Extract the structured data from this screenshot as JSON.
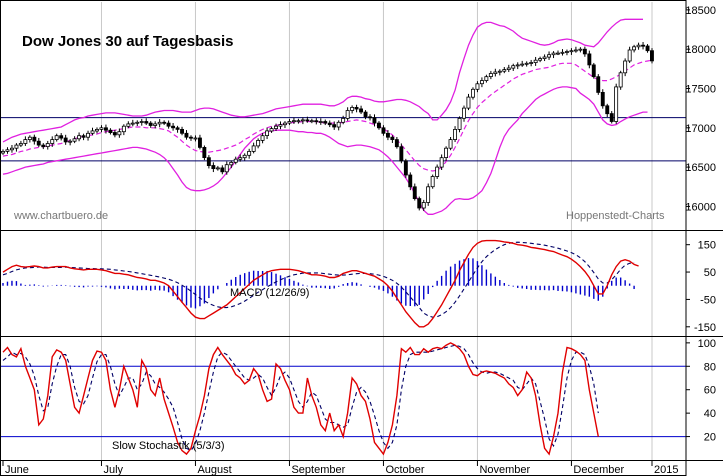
{
  "chart_data": [
    {
      "type": "candlestick",
      "panel": "price",
      "title": "Dow Jones 30 auf Tagesbasis",
      "watermark_left": "www.chartbuero.de",
      "watermark_right": "Hoppenstedt-Charts",
      "ylim": [
        15700,
        18600
      ],
      "yticks": [
        16000,
        16500,
        17000,
        17500,
        18000,
        18500
      ],
      "hlines": [
        17130,
        16580
      ],
      "colors": {
        "price": "#000000",
        "bands": "#e020e0",
        "ma": "#e020e0",
        "hline": "#000066"
      },
      "x_range": [
        0,
        145
      ],
      "close": [
        16700,
        16720,
        16740,
        16780,
        16800,
        16850,
        16880,
        16830,
        16780,
        16760,
        16800,
        16850,
        16900,
        16870,
        16820,
        16830,
        16860,
        16900,
        16880,
        16930,
        16960,
        16980,
        17000,
        16970,
        16940,
        16910,
        16950,
        17020,
        17050,
        17060,
        17070,
        17080,
        17060,
        17030,
        17050,
        17070,
        17060,
        17020,
        17000,
        16980,
        16930,
        16880,
        16870,
        16870,
        16750,
        16620,
        16520,
        16480,
        16490,
        16440,
        16530,
        16560,
        16600,
        16620,
        16650,
        16700,
        16770,
        16840,
        16900,
        16960,
        16990,
        17020,
        17040,
        17060,
        17080,
        17090,
        17090,
        17100,
        17090,
        17090,
        17080,
        17080,
        17060,
        17040,
        17010,
        17070,
        17120,
        17220,
        17260,
        17240,
        17200,
        17140,
        17130,
        17060,
        17000,
        16930,
        16880,
        16850,
        16760,
        16580,
        16400,
        16250,
        16100,
        15980,
        16050,
        16250,
        16380,
        16500,
        16620,
        16740,
        16850,
        16980,
        17120,
        17250,
        17390,
        17490,
        17560,
        17600,
        17650,
        17690,
        17710,
        17720,
        17740,
        17760,
        17790,
        17800,
        17810,
        17820,
        17830,
        17860,
        17880,
        17900,
        17930,
        17950,
        17950,
        17960,
        17970,
        17980,
        17990,
        18000,
        17940,
        17800,
        17650,
        17450,
        17280,
        17180,
        17080,
        17520,
        17700,
        17850,
        17990,
        18030,
        18050,
        18040,
        17980,
        17850
      ],
      "bollinger_upper": [
        16820,
        16850,
        16880,
        16900,
        16920,
        16930,
        16940,
        16950,
        16960,
        16970,
        16980,
        16990,
        17000,
        17010,
        17040,
        17070,
        17100,
        17120,
        17130,
        17150,
        17160,
        17170,
        17180,
        17190,
        17190,
        17190,
        17180,
        17170,
        17160,
        17150,
        17150,
        17150,
        17160,
        17180,
        17200,
        17210,
        17220,
        17220,
        17220,
        17210,
        17200,
        17200,
        17200,
        17220,
        17240,
        17250,
        17250,
        17240,
        17220,
        17200,
        17180,
        17160,
        17150,
        17140,
        17140,
        17150,
        17160,
        17170,
        17180,
        17200,
        17220,
        17240,
        17250,
        17260,
        17270,
        17280,
        17290,
        17300,
        17300,
        17300,
        17300,
        17300,
        17290,
        17280,
        17280,
        17300,
        17330,
        17380,
        17400,
        17400,
        17390,
        17370,
        17360,
        17340,
        17330,
        17330,
        17340,
        17350,
        17360,
        17360,
        17350,
        17330,
        17300,
        17270,
        17220,
        17180,
        17100,
        17100,
        17160,
        17230,
        17330,
        17480,
        17700,
        17880,
        18050,
        18180,
        18280,
        18320,
        18340,
        18340,
        18320,
        18300,
        18290,
        18260,
        18230,
        18180,
        18140,
        18120,
        18100,
        18080,
        18060,
        18050,
        18060,
        18080,
        18110,
        18120,
        18130,
        18120,
        18100,
        18080,
        18050,
        18040,
        18030,
        18080,
        18150,
        18220,
        18280,
        18330,
        18370,
        18380,
        18380,
        18380,
        18380,
        18380
      ],
      "bollinger_lower": [
        16410,
        16420,
        16440,
        16460,
        16480,
        16500,
        16510,
        16520,
        16530,
        16540,
        16560,
        16570,
        16580,
        16590,
        16600,
        16610,
        16620,
        16630,
        16640,
        16650,
        16660,
        16670,
        16680,
        16690,
        16700,
        16710,
        16720,
        16730,
        16740,
        16750,
        16750,
        16740,
        16730,
        16710,
        16690,
        16660,
        16620,
        16560,
        16480,
        16400,
        16310,
        16240,
        16210,
        16200,
        16200,
        16210,
        16230,
        16260,
        16300,
        16360,
        16430,
        16500,
        16580,
        16660,
        16740,
        16800,
        16860,
        16900,
        16930,
        16950,
        16960,
        16970,
        16970,
        16970,
        16970,
        16960,
        16950,
        16950,
        16940,
        16940,
        16930,
        16930,
        16910,
        16880,
        16840,
        16800,
        16780,
        16760,
        16770,
        16780,
        16780,
        16770,
        16760,
        16740,
        16720,
        16680,
        16630,
        16570,
        16500,
        16430,
        16360,
        16270,
        16160,
        16050,
        15950,
        15900,
        15900,
        15920,
        15940,
        15980,
        16040,
        16090,
        16100,
        16090,
        16090,
        16110,
        16150,
        16200,
        16300,
        16420,
        16580,
        16750,
        16890,
        16980,
        17040,
        17100,
        17180,
        17240,
        17300,
        17360,
        17400,
        17430,
        17460,
        17490,
        17510,
        17520,
        17520,
        17510,
        17500,
        17440,
        17400,
        17360,
        17300,
        17200,
        17100,
        17050,
        17030,
        17040,
        17080,
        17110,
        17140,
        17160,
        17180,
        17200,
        17200
      ],
      "moving_average": [
        16640,
        16650,
        16660,
        16680,
        16700,
        16710,
        16730,
        16740,
        16750,
        16760,
        16770,
        16780,
        16790,
        16800,
        16820,
        16840,
        16860,
        16880,
        16890,
        16900,
        16910,
        16920,
        16940,
        16950,
        16960,
        16970,
        16980,
        16990,
        17000,
        17010,
        17010,
        17010,
        17000,
        17000,
        17000,
        16990,
        16980,
        16960,
        16920,
        16880,
        16830,
        16780,
        16740,
        16710,
        16700,
        16690,
        16690,
        16700,
        16710,
        16720,
        16740,
        16760,
        16780,
        16810,
        16850,
        16880,
        16920,
        16950,
        16980,
        17000,
        17020,
        17030,
        17040,
        17050,
        17060,
        17070,
        17070,
        17080,
        17080,
        17080,
        17080,
        17070,
        17060,
        17060,
        17060,
        17060,
        17070,
        17080,
        17090,
        17100,
        17090,
        17080,
        17060,
        17040,
        17020,
        16990,
        16950,
        16910,
        16850,
        16780,
        16720,
        16650,
        16580,
        16520,
        16480,
        16460,
        16450,
        16460,
        16500,
        16570,
        16650,
        16750,
        16860,
        16980,
        17090,
        17180,
        17260,
        17320,
        17370,
        17420,
        17460,
        17500,
        17540,
        17580,
        17620,
        17650,
        17680,
        17700,
        17720,
        17740,
        17750,
        17760,
        17770,
        17790,
        17810,
        17820,
        17820,
        17820,
        17800,
        17760,
        17720,
        17680,
        17640,
        17610,
        17600,
        17600,
        17620,
        17650,
        17680,
        17720,
        17760,
        17800,
        17820,
        17840,
        17850,
        17860
      ]
    },
    {
      "type": "line",
      "panel": "macd",
      "label": "MACD (12/26/9)",
      "ylim": [
        -180,
        200
      ],
      "yticks": [
        150,
        50,
        -50,
        -150
      ],
      "colors": {
        "macd": "#e00000",
        "signal": "#000066",
        "histogram": "#0000cc"
      },
      "macd": [
        50,
        60,
        70,
        75,
        70,
        68,
        70,
        72,
        70,
        65,
        65,
        68,
        70,
        70,
        70,
        65,
        62,
        60,
        58,
        60,
        60,
        60,
        58,
        55,
        50,
        45,
        45,
        42,
        40,
        35,
        30,
        28,
        25,
        20,
        20,
        15,
        10,
        0,
        -20,
        -40,
        -60,
        -80,
        -100,
        -115,
        -120,
        -120,
        -110,
        -100,
        -90,
        -80,
        -70,
        -55,
        -40,
        -25,
        -10,
        5,
        20,
        30,
        40,
        50,
        55,
        58,
        60,
        60,
        60,
        58,
        55,
        50,
        45,
        40,
        40,
        38,
        35,
        30,
        30,
        35,
        45,
        50,
        55,
        55,
        50,
        45,
        40,
        35,
        25,
        15,
        0,
        -20,
        -45,
        -70,
        -95,
        -115,
        -135,
        -150,
        -150,
        -140,
        -120,
        -95,
        -70,
        -40,
        -10,
        20,
        55,
        85,
        115,
        140,
        155,
        163,
        165,
        165,
        165,
        163,
        160,
        158,
        155,
        150,
        148,
        145,
        140,
        138,
        135,
        132,
        128,
        125,
        118,
        112,
        106,
        97,
        85,
        70,
        52,
        30,
        0,
        -30,
        -30,
        0,
        40,
        70,
        90,
        95,
        90,
        78,
        72
      ],
      "signal": [
        40,
        45,
        52,
        58,
        62,
        65,
        66,
        67,
        68,
        68,
        67,
        67,
        67,
        67,
        68,
        67,
        66,
        65,
        64,
        63,
        63,
        62,
        62,
        61,
        60,
        58,
        56,
        54,
        52,
        50,
        47,
        44,
        41,
        38,
        35,
        32,
        28,
        24,
        18,
        11,
        2,
        -8,
        -20,
        -32,
        -45,
        -55,
        -65,
        -72,
        -77,
        -80,
        -80,
        -77,
        -72,
        -65,
        -56,
        -46,
        -35,
        -24,
        -14,
        -4,
        5,
        14,
        22,
        29,
        35,
        40,
        43,
        46,
        47,
        47,
        47,
        46,
        44,
        42,
        40,
        39,
        39,
        40,
        42,
        44,
        45,
        45,
        44,
        42,
        39,
        34,
        28,
        20,
        9,
        -5,
        -22,
        -41,
        -60,
        -80,
        -100,
        -110,
        -115,
        -113,
        -106,
        -95,
        -80,
        -60,
        -37,
        -12,
        14,
        40,
        65,
        88,
        106,
        120,
        132,
        142,
        150,
        155,
        158,
        159,
        158,
        157,
        155,
        153,
        151,
        148,
        145,
        141,
        137,
        132,
        127,
        121,
        113,
        102,
        88,
        70,
        48,
        25,
        10,
        10,
        22,
        40,
        60,
        75,
        82,
        84
      ],
      "histogram": [
        10,
        15,
        18,
        17,
        8,
        3,
        4,
        5,
        2,
        -3,
        -2,
        1,
        3,
        3,
        2,
        -2,
        -4,
        -5,
        -6,
        -3,
        -3,
        -2,
        -4,
        -6,
        -10,
        -13,
        -11,
        -12,
        -12,
        -15,
        -17,
        -16,
        -16,
        -18,
        -15,
        -17,
        -18,
        -24,
        -38,
        -51,
        -62,
        -72,
        -80,
        -83,
        -75,
        -65,
        -45,
        -28,
        -13,
        0,
        10,
        22,
        32,
        40,
        46,
        51,
        55,
        54,
        54,
        54,
        50,
        44,
        38,
        31,
        25,
        18,
        12,
        4,
        -2,
        -7,
        -7,
        -8,
        -9,
        -12,
        -10,
        -4,
        6,
        10,
        13,
        11,
        5,
        0,
        -4,
        -7,
        -14,
        -19,
        -28,
        -40,
        -54,
        -65,
        -73,
        -74,
        -75,
        -70,
        -50,
        -30,
        -5,
        18,
        36,
        55,
        70,
        80,
        92,
        97,
        101,
        100,
        90,
        75,
        59,
        45,
        33,
        21,
        10,
        3,
        -3,
        -8,
        -10,
        -12,
        -15,
        -15,
        -16,
        -16,
        -17,
        -16,
        -19,
        -20,
        -21,
        -24,
        -28,
        -32,
        -36,
        -40,
        -48,
        -55,
        -40,
        -10,
        18,
        30,
        30,
        20,
        8,
        -12
      ]
    },
    {
      "type": "line",
      "panel": "stochastic",
      "label": "Slow Stochastik (5/3/3)",
      "ylim": [
        0,
        105
      ],
      "yticks": [
        100,
        80,
        60,
        40,
        20
      ],
      "hlines": [
        80,
        20
      ],
      "colors": {
        "k": "#e00000",
        "d": "#000066",
        "hline": "#0000cc"
      },
      "k": [
        92,
        96,
        90,
        88,
        95,
        80,
        70,
        60,
        30,
        35,
        55,
        88,
        94,
        92,
        85,
        65,
        45,
        40,
        55,
        70,
        85,
        93,
        92,
        85,
        60,
        45,
        60,
        80,
        70,
        60,
        45,
        85,
        78,
        60,
        55,
        70,
        52,
        40,
        28,
        15,
        8,
        5,
        10,
        25,
        38,
        55,
        78,
        90,
        96,
        90,
        85,
        80,
        73,
        70,
        65,
        68,
        78,
        73,
        60,
        50,
        52,
        82,
        78,
        68,
        60,
        45,
        40,
        40,
        70,
        55,
        45,
        30,
        25,
        40,
        25,
        30,
        20,
        40,
        70,
        65,
        55,
        50,
        35,
        15,
        10,
        5,
        15,
        30,
        55,
        95,
        92,
        96,
        90,
        90,
        95,
        92,
        95,
        96,
        95,
        98,
        100,
        98,
        95,
        90,
        80,
        73,
        72,
        75,
        76,
        75,
        74,
        72,
        70,
        65,
        62,
        55,
        60,
        75,
        70,
        55,
        30,
        10,
        5,
        20,
        40,
        75,
        96,
        95,
        93,
        90,
        85,
        60,
        40,
        20
      ],
      "d": [
        85,
        88,
        92,
        90,
        91,
        88,
        82,
        72,
        55,
        42,
        45,
        65,
        80,
        90,
        90,
        80,
        62,
        50,
        48,
        55,
        70,
        84,
        90,
        90,
        80,
        65,
        55,
        62,
        70,
        70,
        60,
        65,
        75,
        72,
        65,
        62,
        58,
        52,
        45,
        32,
        18,
        10,
        8,
        14,
        25,
        40,
        58,
        75,
        88,
        92,
        90,
        85,
        80,
        75,
        70,
        68,
        70,
        73,
        70,
        62,
        55,
        62,
        72,
        75,
        70,
        60,
        50,
        45,
        50,
        58,
        55,
        45,
        35,
        32,
        32,
        30,
        28,
        30,
        45,
        58,
        62,
        58,
        50,
        38,
        25,
        15,
        10,
        15,
        30,
        60,
        80,
        90,
        92,
        92,
        92,
        92,
        93,
        94,
        95,
        96,
        97,
        98,
        97,
        95,
        90,
        83,
        78,
        75,
        74,
        75,
        75,
        74,
        72,
        70,
        68,
        62,
        60,
        65,
        70,
        65,
        50,
        35,
        18,
        12,
        22,
        45,
        70,
        85,
        92,
        92,
        90,
        80,
        65,
        40
      ],
      "xticks": [
        "June",
        "July",
        "August",
        "September",
        "October",
        "November",
        "December",
        "2015"
      ]
    }
  ]
}
